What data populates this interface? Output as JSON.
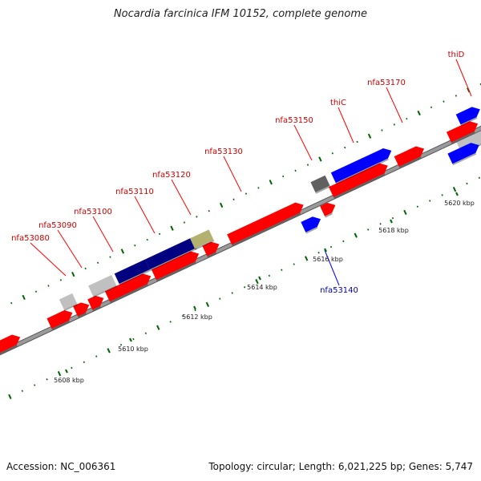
{
  "title": "Nocardia farcinica IFM 10152, complete genome",
  "footer": {
    "accession": "Accession: NC_006361",
    "stats": "Topology: circular; Length: 6,021,225 bp; Genes: 5,747"
  },
  "colors": {
    "backbone": "#9a9a9a",
    "red": "#ff0000",
    "blue": "#0000ff",
    "navy": "#000080",
    "grey": "#c0c0c0",
    "darkgrey": "#606060",
    "olive": "#b4b070",
    "tick": "#006400",
    "label_red": "#cc0000",
    "label_blue": "#0000aa"
  },
  "ticks": [
    {
      "label": "5608 kbp",
      "kbp": 5608
    },
    {
      "label": "5610 kbp",
      "kbp": 5610
    },
    {
      "label": "5612 kbp",
      "kbp": 5612
    },
    {
      "label": "5614 kbp",
      "kbp": 5614
    },
    {
      "label": "5616 kbp",
      "kbp": 5616
    },
    {
      "label": "5618 kbp",
      "kbp": 5618
    },
    {
      "label": "5620 kbp",
      "kbp": 5620
    }
  ],
  "genes": [
    {
      "name": "nfa53080",
      "color": "red"
    },
    {
      "name": "nfa53090",
      "color": "red"
    },
    {
      "name": "nfa53100",
      "color": "red"
    },
    {
      "name": "nfa53110",
      "color": "red"
    },
    {
      "name": "nfa53120",
      "color": "red"
    },
    {
      "name": "nfa53130",
      "color": "red"
    },
    {
      "name": "nfa53140",
      "color": "blue"
    },
    {
      "name": "nfa53150",
      "color": "red"
    },
    {
      "name": "thiC",
      "color": "red"
    },
    {
      "name": "nfa53170",
      "color": "red"
    },
    {
      "name": "thiD",
      "color": "red"
    }
  ]
}
